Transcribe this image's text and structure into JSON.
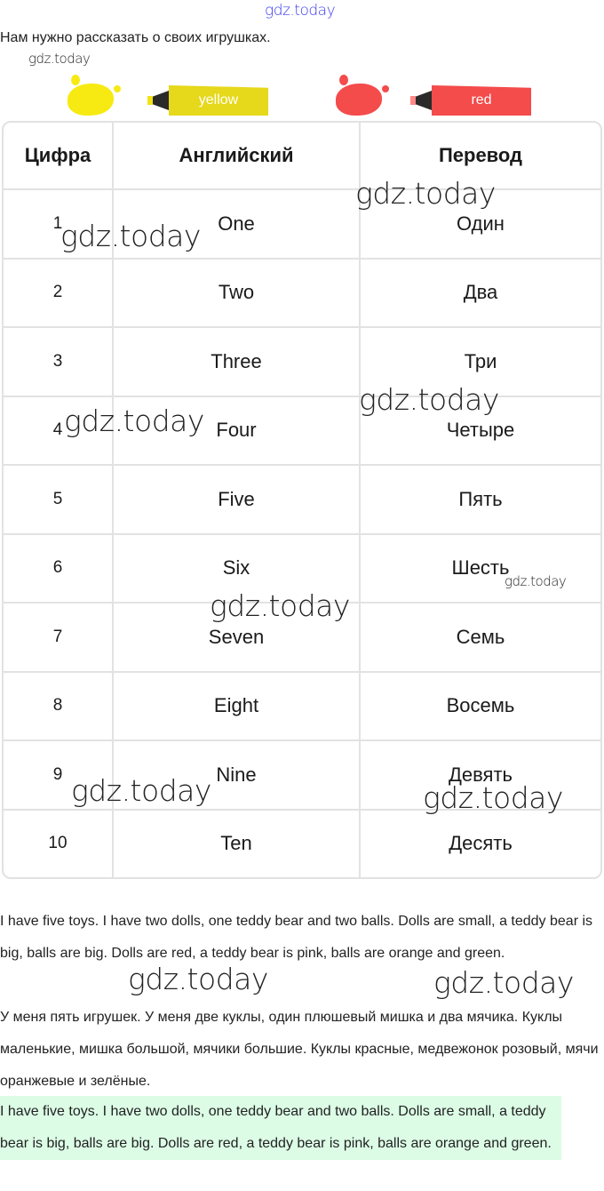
{
  "watermarks": [
    "gdz.today",
    "gdz.today",
    "gdz.today",
    "gdz.today",
    "gdz.today",
    "gdz.today",
    "gdz.today",
    "gdz.today",
    "gdz.today",
    "gdz.today",
    "gdz.today",
    "gdz.today",
    "gdz.today"
  ],
  "intro": "Нам нужно рассказать о своих игрушках.",
  "markers": [
    {
      "label": "yellow",
      "color": "#f2e21a"
    },
    {
      "label": "red",
      "color": "#f44b4b"
    }
  ],
  "table": {
    "headers": [
      "Цифра",
      "Английский",
      "Перевод"
    ],
    "rows": [
      [
        "1",
        "One",
        "Один"
      ],
      [
        "2",
        "Two",
        "Два"
      ],
      [
        "3",
        "Three",
        "Три"
      ],
      [
        "4",
        "Four",
        "Четыре"
      ],
      [
        "5",
        "Five",
        "Пять"
      ],
      [
        "6",
        "Six",
        "Шесть"
      ],
      [
        "7",
        "Seven",
        "Семь"
      ],
      [
        "8",
        "Eight",
        "Восемь"
      ],
      [
        "9",
        "Nine",
        "Девять"
      ],
      [
        "10",
        "Ten",
        "Десять"
      ]
    ]
  },
  "paragraphs": [
    "I have five toys. I have two dolls, one teddy bear and two balls. Dolls are small, a teddy bear is big, balls are big. Dolls are red, a teddy bear is pink, balls are orange and green.",
    "У меня пять игрушек. У меня две куклы, один плюшевый мишка и два мячика. Куклы маленькие, мишка большой, мячики большие. Куклы красные, медвежонок розовый, мячи оранжевые и зелёные.",
    "I have five toys. I have two dolls, one teddy bear and two balls. Dolls are small, a teddy bear is big, balls are big. Dolls are red, a teddy bear is pink, balls are orange and green."
  ],
  "highlight_color": "#dcfce6"
}
